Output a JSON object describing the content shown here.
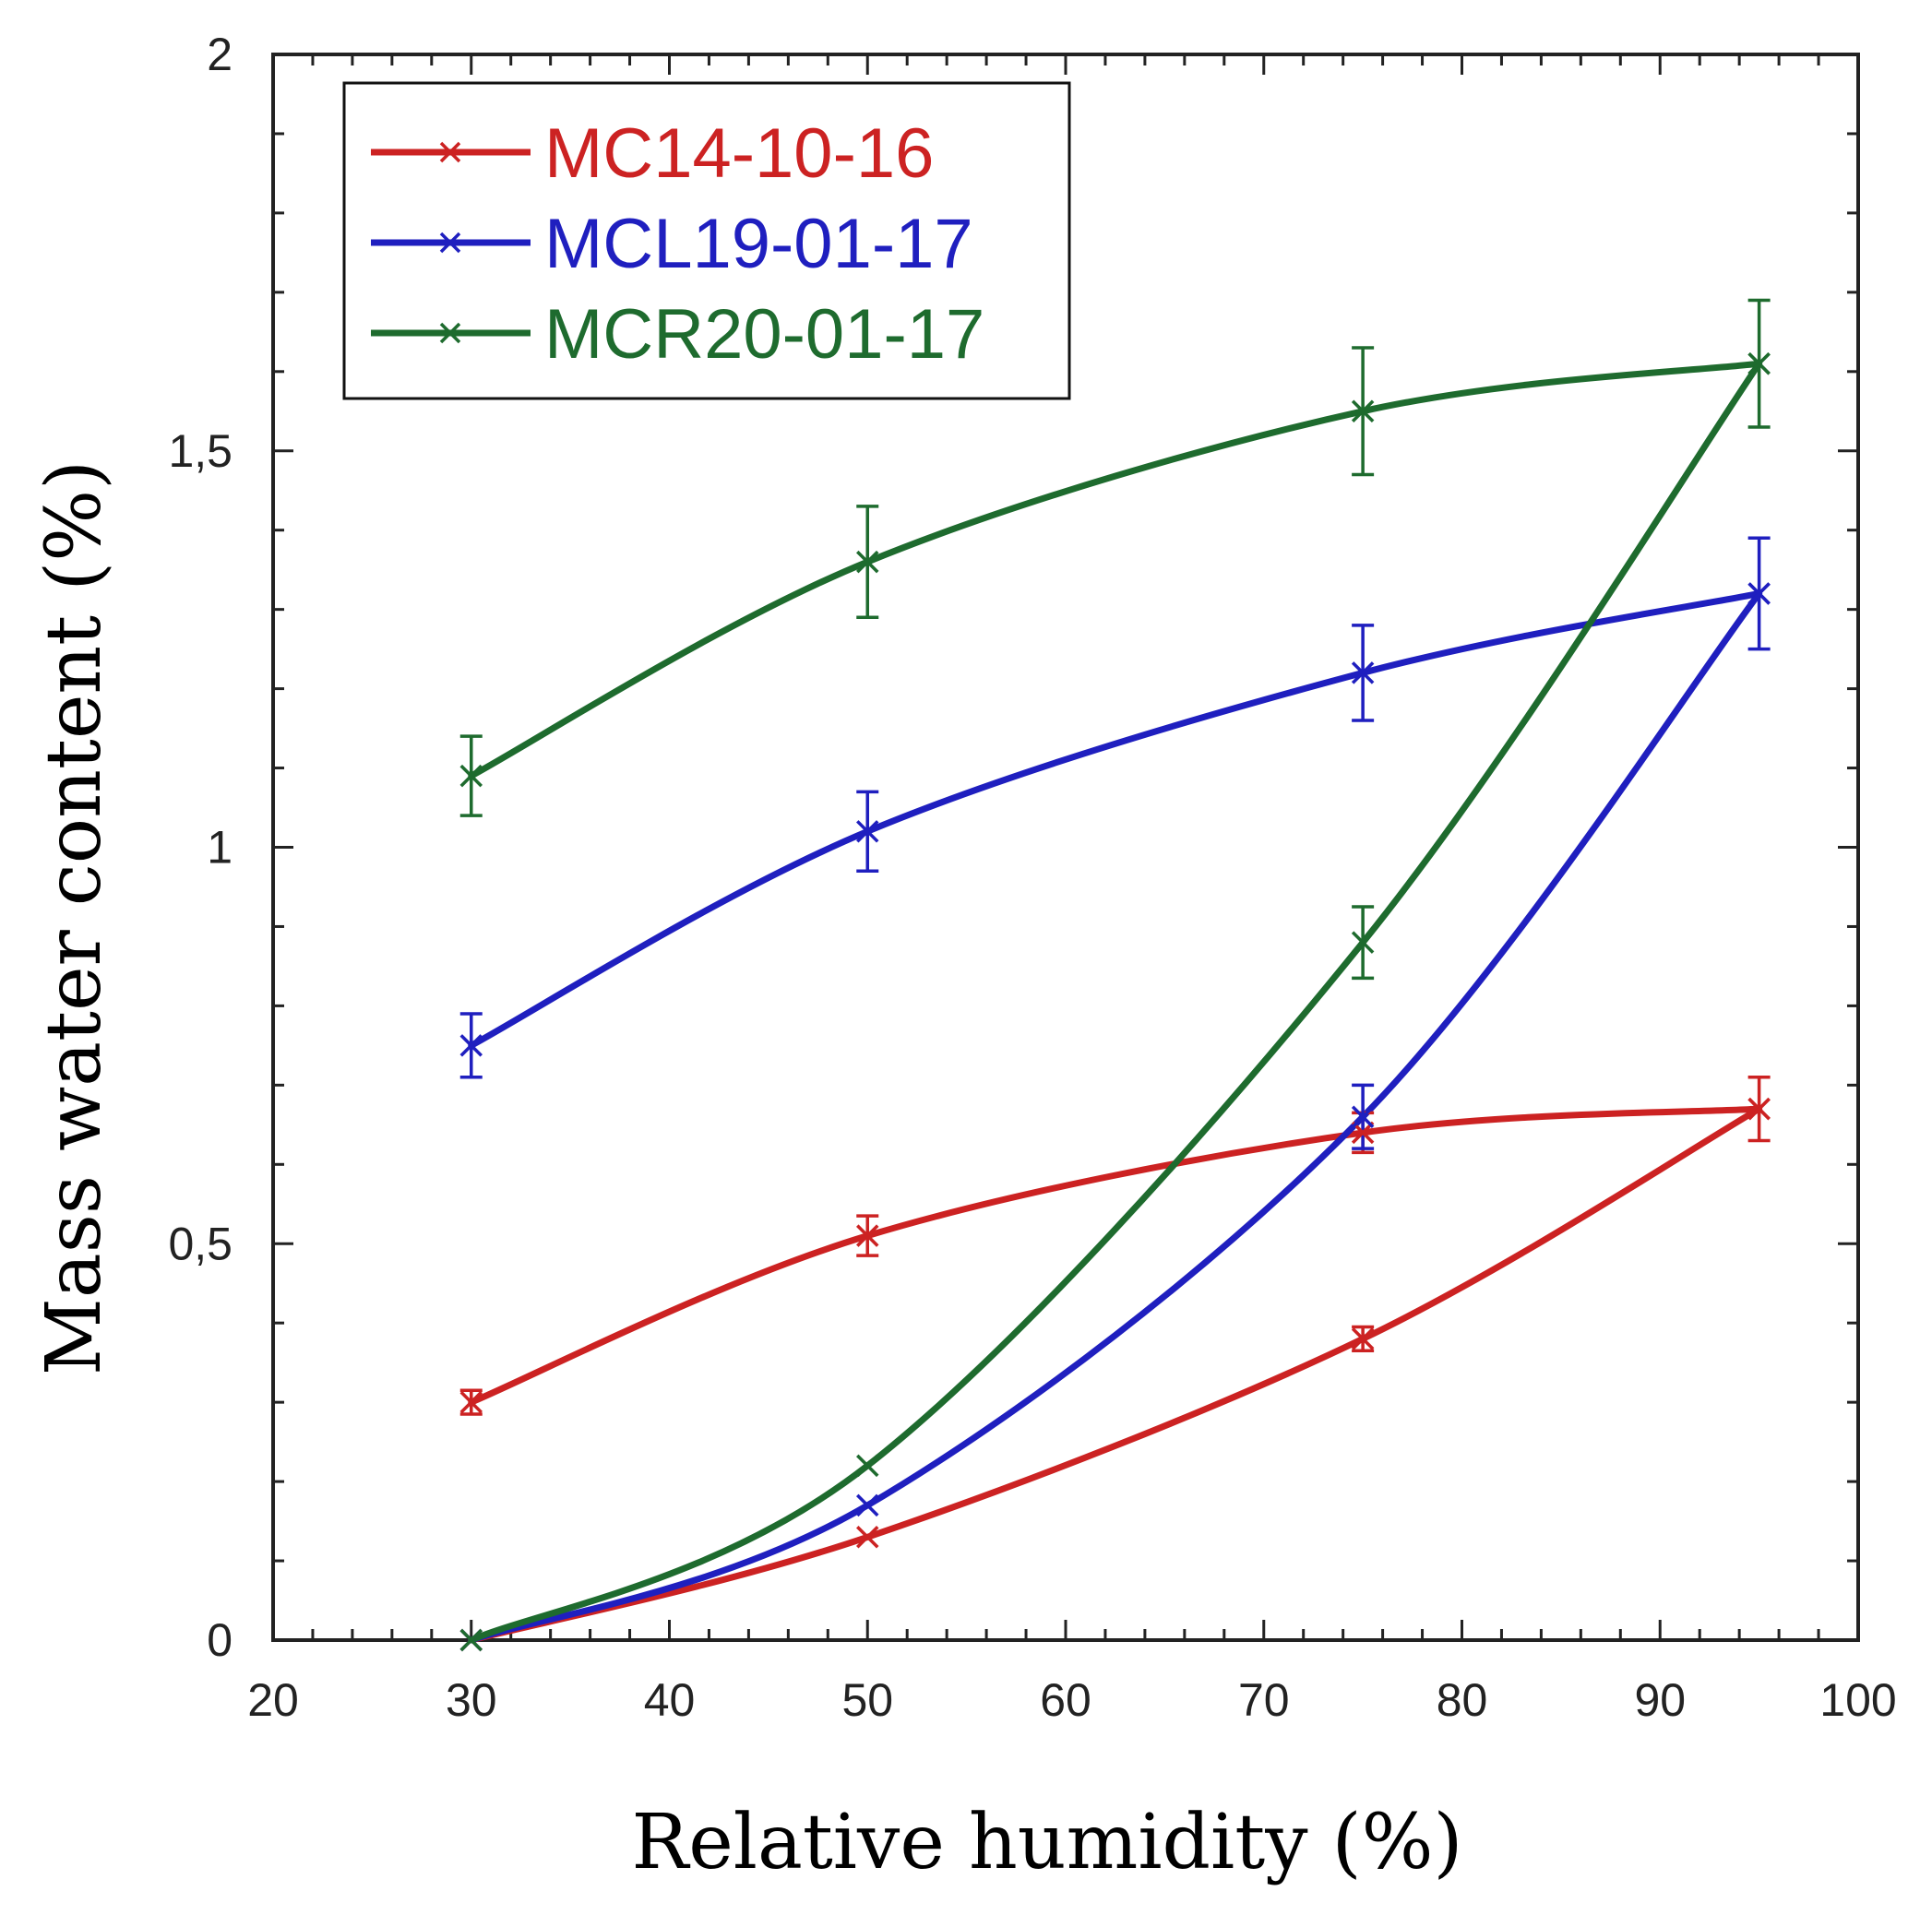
{
  "chart_data": {
    "type": "line",
    "title": "",
    "xlabel": "Relative humidity (%)",
    "ylabel": "Mass water content (%)",
    "xlim": [
      20,
      100
    ],
    "ylim": [
      0,
      2
    ],
    "x_ticks": [
      20,
      30,
      40,
      50,
      60,
      70,
      80,
      90,
      100
    ],
    "x_tick_labels": [
      "20",
      "30",
      "40",
      "50",
      "60",
      "70",
      "80",
      "90",
      "100"
    ],
    "y_ticks": [
      0,
      0.5,
      1,
      1.5,
      2
    ],
    "y_tick_labels": [
      "0",
      "0,5",
      "1",
      "1,5",
      "2"
    ],
    "grid": false,
    "legend_position": "top-left",
    "series": [
      {
        "name": "MC14-10-16",
        "color": "#cc2222",
        "marker": "x",
        "adsorption": {
          "x": [
            30,
            50,
            75,
            95
          ],
          "y": [
            0,
            0.13,
            0.38,
            0.67
          ]
        },
        "desorption": {
          "x": [
            95,
            75,
            50,
            30
          ],
          "y": [
            0.67,
            0.64,
            0.51,
            0.3
          ]
        },
        "error": [
          {
            "x": 30,
            "y": 0.3,
            "err": 0.015
          },
          {
            "x": 50,
            "y": 0.51,
            "err": 0.025
          },
          {
            "x": 75,
            "y": 0.38,
            "err": 0.015
          },
          {
            "x": 75,
            "y": 0.64,
            "err": 0.025
          },
          {
            "x": 95,
            "y": 0.67,
            "err": 0.04
          }
        ]
      },
      {
        "name": "MCL19-01-17",
        "color": "#1f1fbf",
        "marker": "x",
        "adsorption": {
          "x": [
            30,
            50,
            75,
            95
          ],
          "y": [
            0,
            0.17,
            0.66,
            1.32
          ]
        },
        "desorption": {
          "x": [
            95,
            75,
            50,
            30
          ],
          "y": [
            1.32,
            1.22,
            1.02,
            0.75
          ]
        },
        "error": [
          {
            "x": 30,
            "y": 0.75,
            "err": 0.04
          },
          {
            "x": 50,
            "y": 1.02,
            "err": 0.05
          },
          {
            "x": 75,
            "y": 0.66,
            "err": 0.04
          },
          {
            "x": 75,
            "y": 1.22,
            "err": 0.06
          },
          {
            "x": 95,
            "y": 1.32,
            "err": 0.07
          }
        ]
      },
      {
        "name": "MCR20-01-17",
        "color": "#1e6b2e",
        "marker": "x",
        "adsorption": {
          "x": [
            30,
            50,
            75,
            95
          ],
          "y": [
            0,
            0.22,
            0.88,
            1.61
          ]
        },
        "desorption": {
          "x": [
            95,
            75,
            50,
            30
          ],
          "y": [
            1.61,
            1.55,
            1.36,
            1.09
          ]
        },
        "error": [
          {
            "x": 30,
            "y": 1.09,
            "err": 0.05
          },
          {
            "x": 50,
            "y": 1.36,
            "err": 0.07
          },
          {
            "x": 75,
            "y": 0.88,
            "err": 0.045
          },
          {
            "x": 75,
            "y": 1.55,
            "err": 0.08
          },
          {
            "x": 95,
            "y": 1.61,
            "err": 0.08
          }
        ]
      }
    ]
  }
}
